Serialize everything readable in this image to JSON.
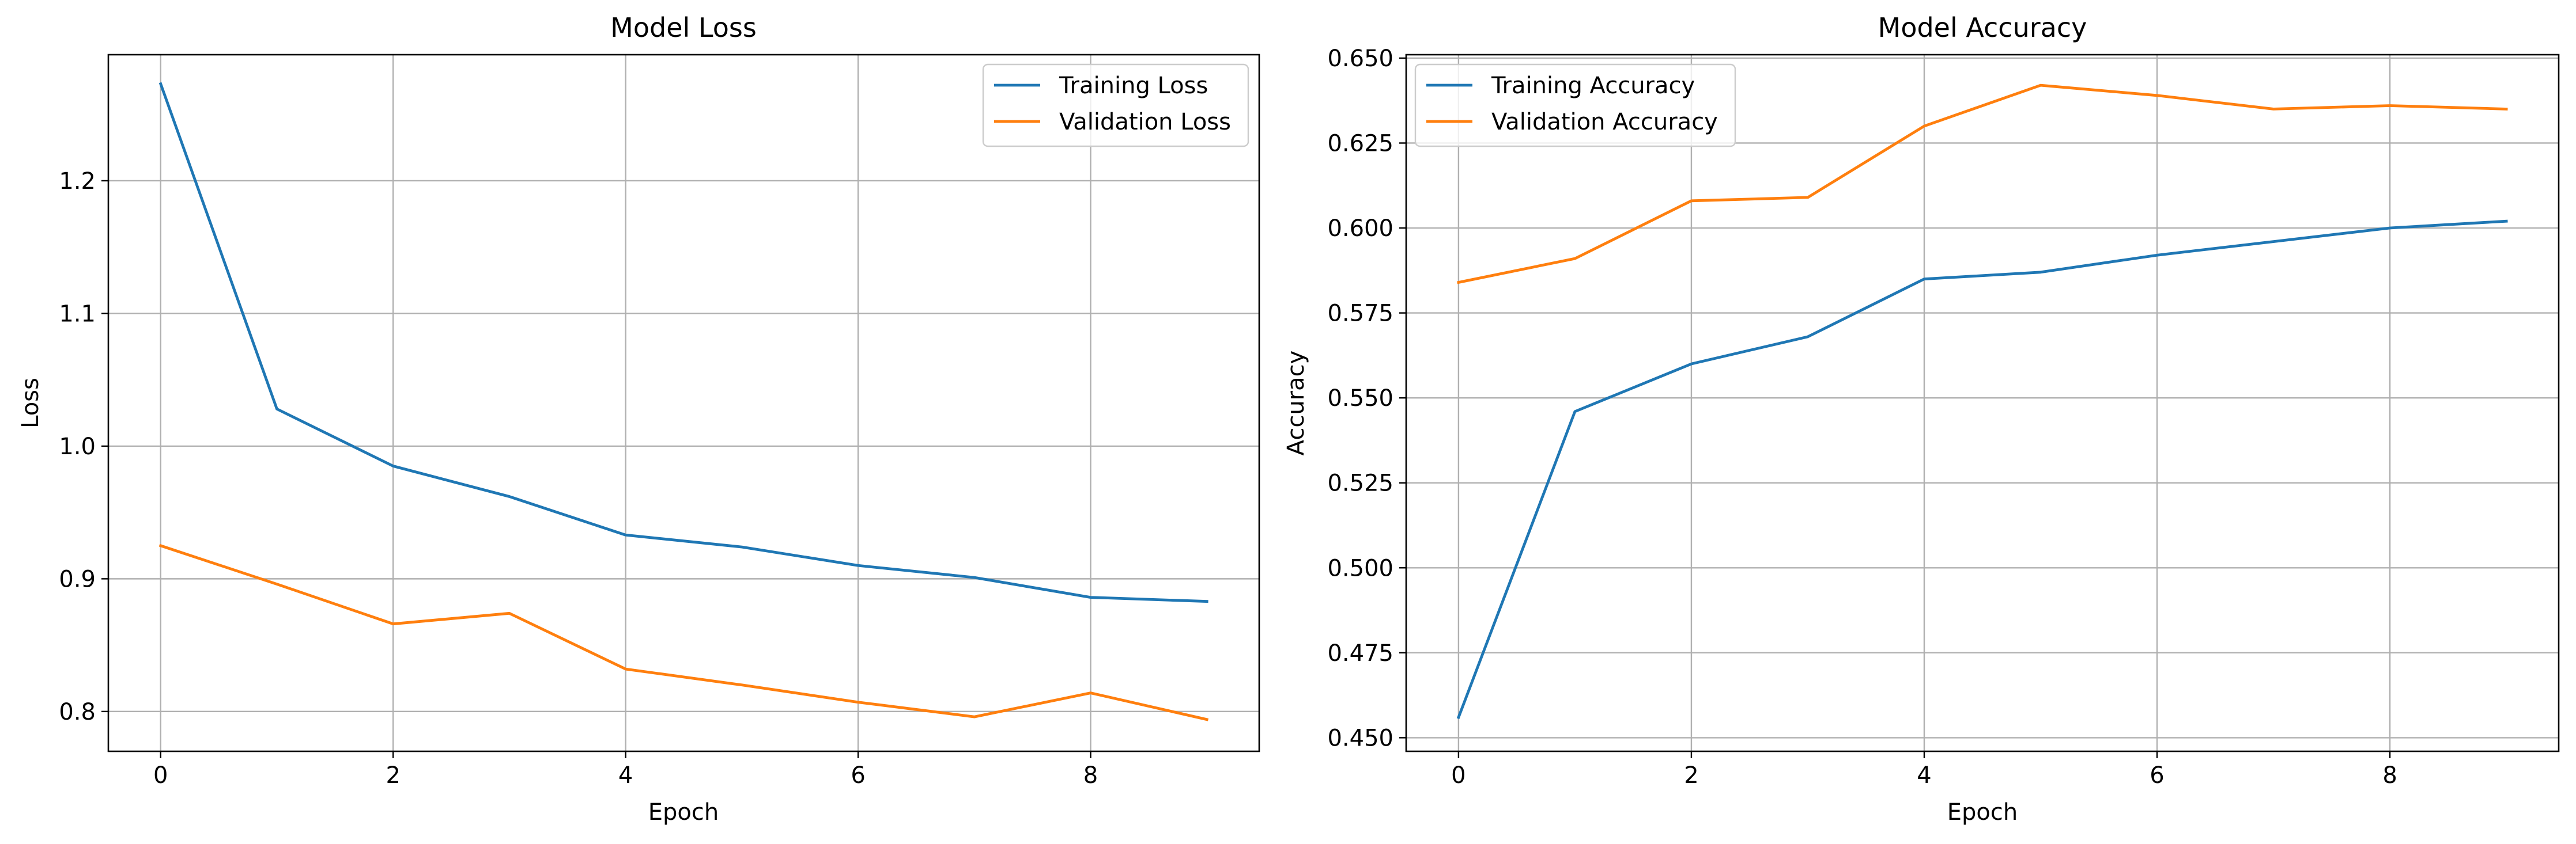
{
  "chart_data": [
    {
      "type": "line",
      "title": "Model Loss",
      "xlabel": "Epoch",
      "ylabel": "Loss",
      "x": [
        0,
        1,
        2,
        3,
        4,
        5,
        6,
        7,
        8,
        9
      ],
      "xlim": [
        -0.45,
        9.45
      ],
      "ylim": [
        0.77,
        1.295
      ],
      "xticks": [
        0,
        2,
        4,
        6,
        8
      ],
      "xtick_labels": [
        "0",
        "2",
        "4",
        "6",
        "8"
      ],
      "yticks": [
        0.8,
        0.9,
        1.0,
        1.1,
        1.2
      ],
      "ytick_labels": [
        "0.8",
        "0.9",
        "1.0",
        "1.1",
        "1.2"
      ],
      "grid": true,
      "legend_position": "upper right",
      "series": [
        {
          "name": "Training Loss",
          "color": "#1f77b4",
          "values": [
            1.273,
            1.028,
            0.985,
            0.962,
            0.933,
            0.924,
            0.91,
            0.901,
            0.886,
            0.883
          ]
        },
        {
          "name": "Validation Loss",
          "color": "#ff7f0e",
          "values": [
            0.925,
            0.896,
            0.866,
            0.874,
            0.832,
            0.82,
            0.807,
            0.796,
            0.814,
            0.794
          ]
        }
      ]
    },
    {
      "type": "line",
      "title": "Model Accuracy",
      "xlabel": "Epoch",
      "ylabel": "Accuracy",
      "x": [
        0,
        1,
        2,
        3,
        4,
        5,
        6,
        7,
        8,
        9
      ],
      "xlim": [
        -0.45,
        9.45
      ],
      "ylim": [
        0.446,
        0.651
      ],
      "xticks": [
        0,
        2,
        4,
        6,
        8
      ],
      "xtick_labels": [
        "0",
        "2",
        "4",
        "6",
        "8"
      ],
      "yticks": [
        0.45,
        0.475,
        0.5,
        0.525,
        0.55,
        0.575,
        0.6,
        0.625,
        0.65
      ],
      "ytick_labels": [
        "0.450",
        "0.475",
        "0.500",
        "0.525",
        "0.550",
        "0.575",
        "0.600",
        "0.625",
        "0.650"
      ],
      "grid": true,
      "legend_position": "upper left",
      "series": [
        {
          "name": "Training Accuracy",
          "color": "#1f77b4",
          "values": [
            0.456,
            0.546,
            0.56,
            0.568,
            0.585,
            0.587,
            0.592,
            0.596,
            0.6,
            0.602
          ]
        },
        {
          "name": "Validation Accuracy",
          "color": "#ff7f0e",
          "values": [
            0.584,
            0.591,
            0.608,
            0.609,
            0.63,
            0.642,
            0.639,
            0.635,
            0.636,
            0.635
          ]
        }
      ]
    }
  ]
}
